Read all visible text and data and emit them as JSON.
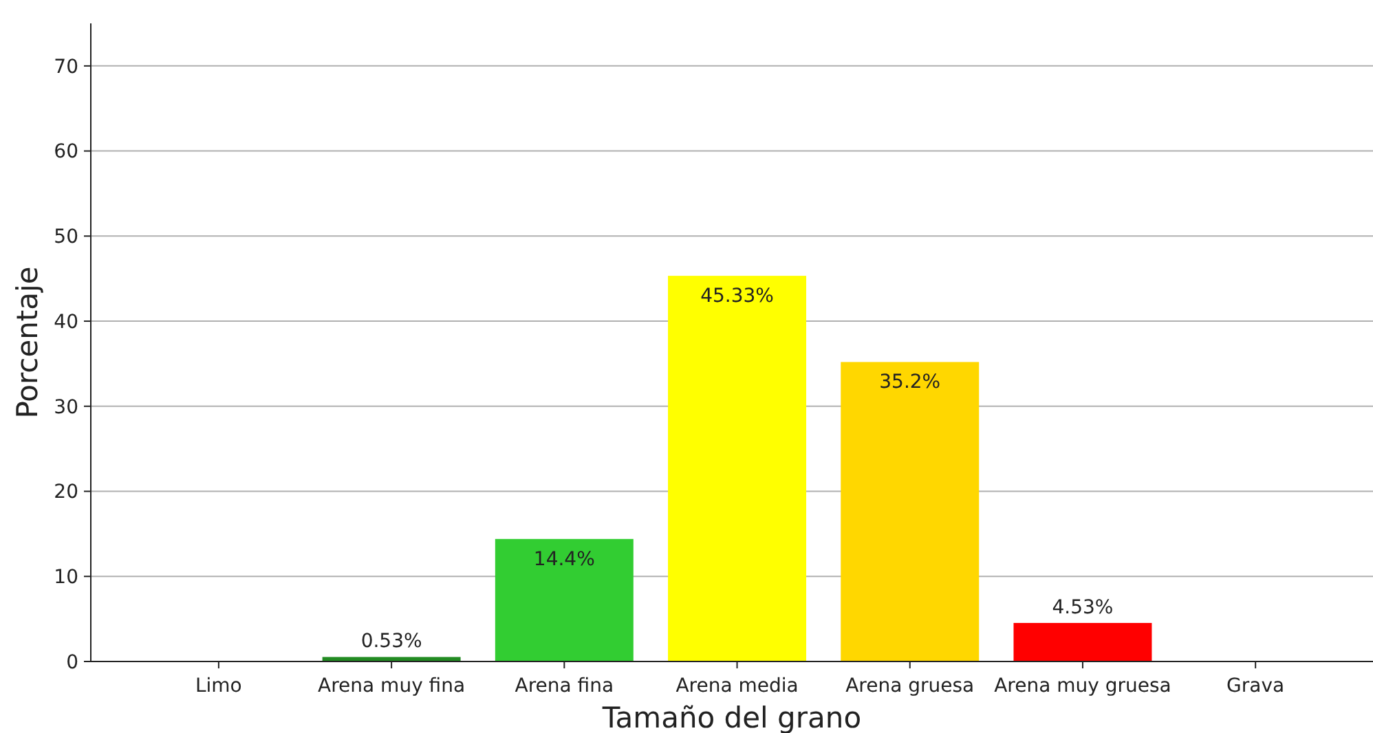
{
  "chart_data": {
    "type": "bar",
    "xlabel": "Tamaño del grano",
    "ylabel": "Porcentaje",
    "categories": [
      "Limo",
      "Arena muy fina",
      "Arena fina",
      "Arena media",
      "Arena gruesa",
      "Arena muy gruesa",
      "Grava"
    ],
    "values": [
      0,
      0.53,
      14.4,
      45.33,
      35.2,
      4.53,
      0
    ],
    "colors": [
      "#8b4513",
      "#228b22",
      "#32cd32",
      "#ffff00",
      "#ffd700",
      "#ff0000",
      "#808080"
    ],
    "value_labels": [
      null,
      "0.53%",
      "14.4%",
      "45.33%",
      "35.2%",
      "4.53%",
      null
    ],
    "ylim": [
      0,
      75
    ],
    "yticks": [
      0,
      10,
      20,
      30,
      40,
      50,
      60,
      70
    ],
    "grid": "y"
  }
}
